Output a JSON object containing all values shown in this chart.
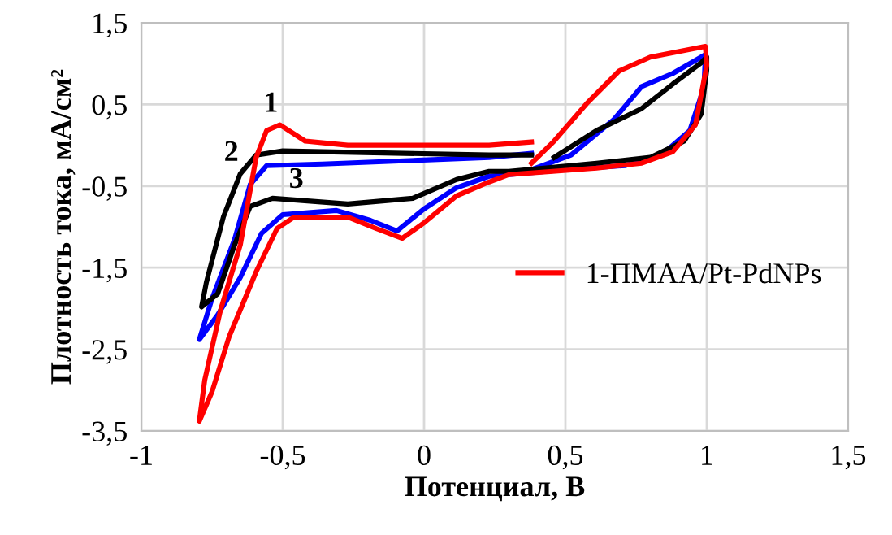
{
  "chart_data": {
    "type": "line",
    "xlabel": "Потенциал, В",
    "ylabel": "Плотность тока, мА/см²",
    "xlim": [
      -1,
      1.5
    ],
    "ylim": [
      -3.5,
      1.5
    ],
    "xticks": [
      -1,
      {
        "value": -0.5,
        "label": "-0,5"
      },
      0,
      {
        "value": 0.5,
        "label": "0,5"
      },
      1,
      {
        "value": 1.5,
        "label": "1,5"
      }
    ],
    "yticks": [
      {
        "value": -3.5,
        "label": "-3,5"
      },
      {
        "value": -2.5,
        "label": "-2,5"
      },
      {
        "value": -1.5,
        "label": "-1,5"
      },
      {
        "value": -0.5,
        "label": "-0,5"
      },
      {
        "value": 0.5,
        "label": "0,5"
      },
      {
        "value": 1.5,
        "label": "1,5"
      }
    ],
    "grid": true,
    "legend": "right",
    "marker": "none",
    "line_style": "solid",
    "annotations": [
      {
        "text": "1",
        "x": -0.51,
        "y": 0.25
      },
      {
        "text": "2",
        "x": -0.65,
        "y": -0.35
      },
      {
        "text": "3",
        "x": -0.42,
        "y": -0.68
      }
    ],
    "series": [
      {
        "name": "1-ПМАА/Pt-PdNPs",
        "color": "#ff0000",
        "x": [
          0.38,
          0.46,
          0.575,
          0.69,
          0.8,
          0.995,
          1.0,
          0.96,
          0.88,
          0.77,
          0.61,
          0.3,
          0.23,
          0.115,
          0.0,
          -0.077,
          -0.17,
          -0.27,
          -0.46,
          -0.52,
          -0.594,
          -0.69,
          -0.75,
          -0.795,
          -0.776,
          -0.72,
          -0.65,
          -0.594,
          -0.557,
          -0.51,
          -0.42,
          -0.27,
          0.23,
          0.38
        ],
        "values": [
          -0.22,
          0.05,
          0.51,
          0.91,
          1.08,
          1.21,
          0.98,
          0.25,
          -0.08,
          -0.22,
          -0.28,
          -0.36,
          -0.45,
          -0.62,
          -0.95,
          -1.14,
          -1.02,
          -0.88,
          -0.88,
          -1.02,
          -1.55,
          -2.35,
          -3.02,
          -3.38,
          -2.88,
          -2.02,
          -1.22,
          -0.15,
          0.18,
          0.25,
          0.05,
          0.0,
          0.0,
          0.04
        ]
      },
      {
        "color": "#000000",
        "x": [
          0.46,
          0.61,
          0.77,
          0.88,
          0.98,
          1.0,
          1.0,
          0.98,
          0.92,
          0.8,
          0.61,
          0.3,
          0.23,
          0.115,
          -0.04,
          -0.27,
          -0.536,
          -0.615,
          -0.67,
          -0.73,
          -0.787,
          -0.77,
          -0.71,
          -0.65,
          -0.594,
          -0.5,
          0.23,
          0.38
        ],
        "values": [
          -0.15,
          0.18,
          0.45,
          0.75,
          1.01,
          1.08,
          0.92,
          0.38,
          0.05,
          -0.15,
          -0.22,
          -0.32,
          -0.32,
          -0.42,
          -0.65,
          -0.72,
          -0.65,
          -0.75,
          -1.22,
          -1.82,
          -1.98,
          -1.68,
          -0.88,
          -0.35,
          -0.12,
          -0.07,
          -0.12,
          -0.12
        ]
      },
      {
        "color": "#0000ff",
        "x": [
          0.38,
          0.52,
          0.67,
          0.77,
          0.88,
          0.995,
          0.99,
          0.94,
          0.84,
          0.71,
          0.5,
          0.3,
          0.23,
          0.115,
          0.0,
          -0.096,
          -0.19,
          -0.31,
          -0.5,
          -0.575,
          -0.65,
          -0.73,
          -0.795,
          -0.75,
          -0.67,
          -0.615,
          -0.557,
          -0.36,
          0.23,
          0.38
        ],
        "values": [
          -0.3,
          -0.12,
          0.31,
          0.72,
          0.88,
          1.11,
          0.71,
          0.18,
          -0.12,
          -0.25,
          -0.3,
          -0.36,
          -0.38,
          -0.52,
          -0.78,
          -1.05,
          -0.92,
          -0.8,
          -0.85,
          -1.08,
          -1.62,
          -2.08,
          -2.38,
          -1.88,
          -1.15,
          -0.48,
          -0.25,
          -0.23,
          -0.15,
          -0.1
        ]
      }
    ]
  }
}
